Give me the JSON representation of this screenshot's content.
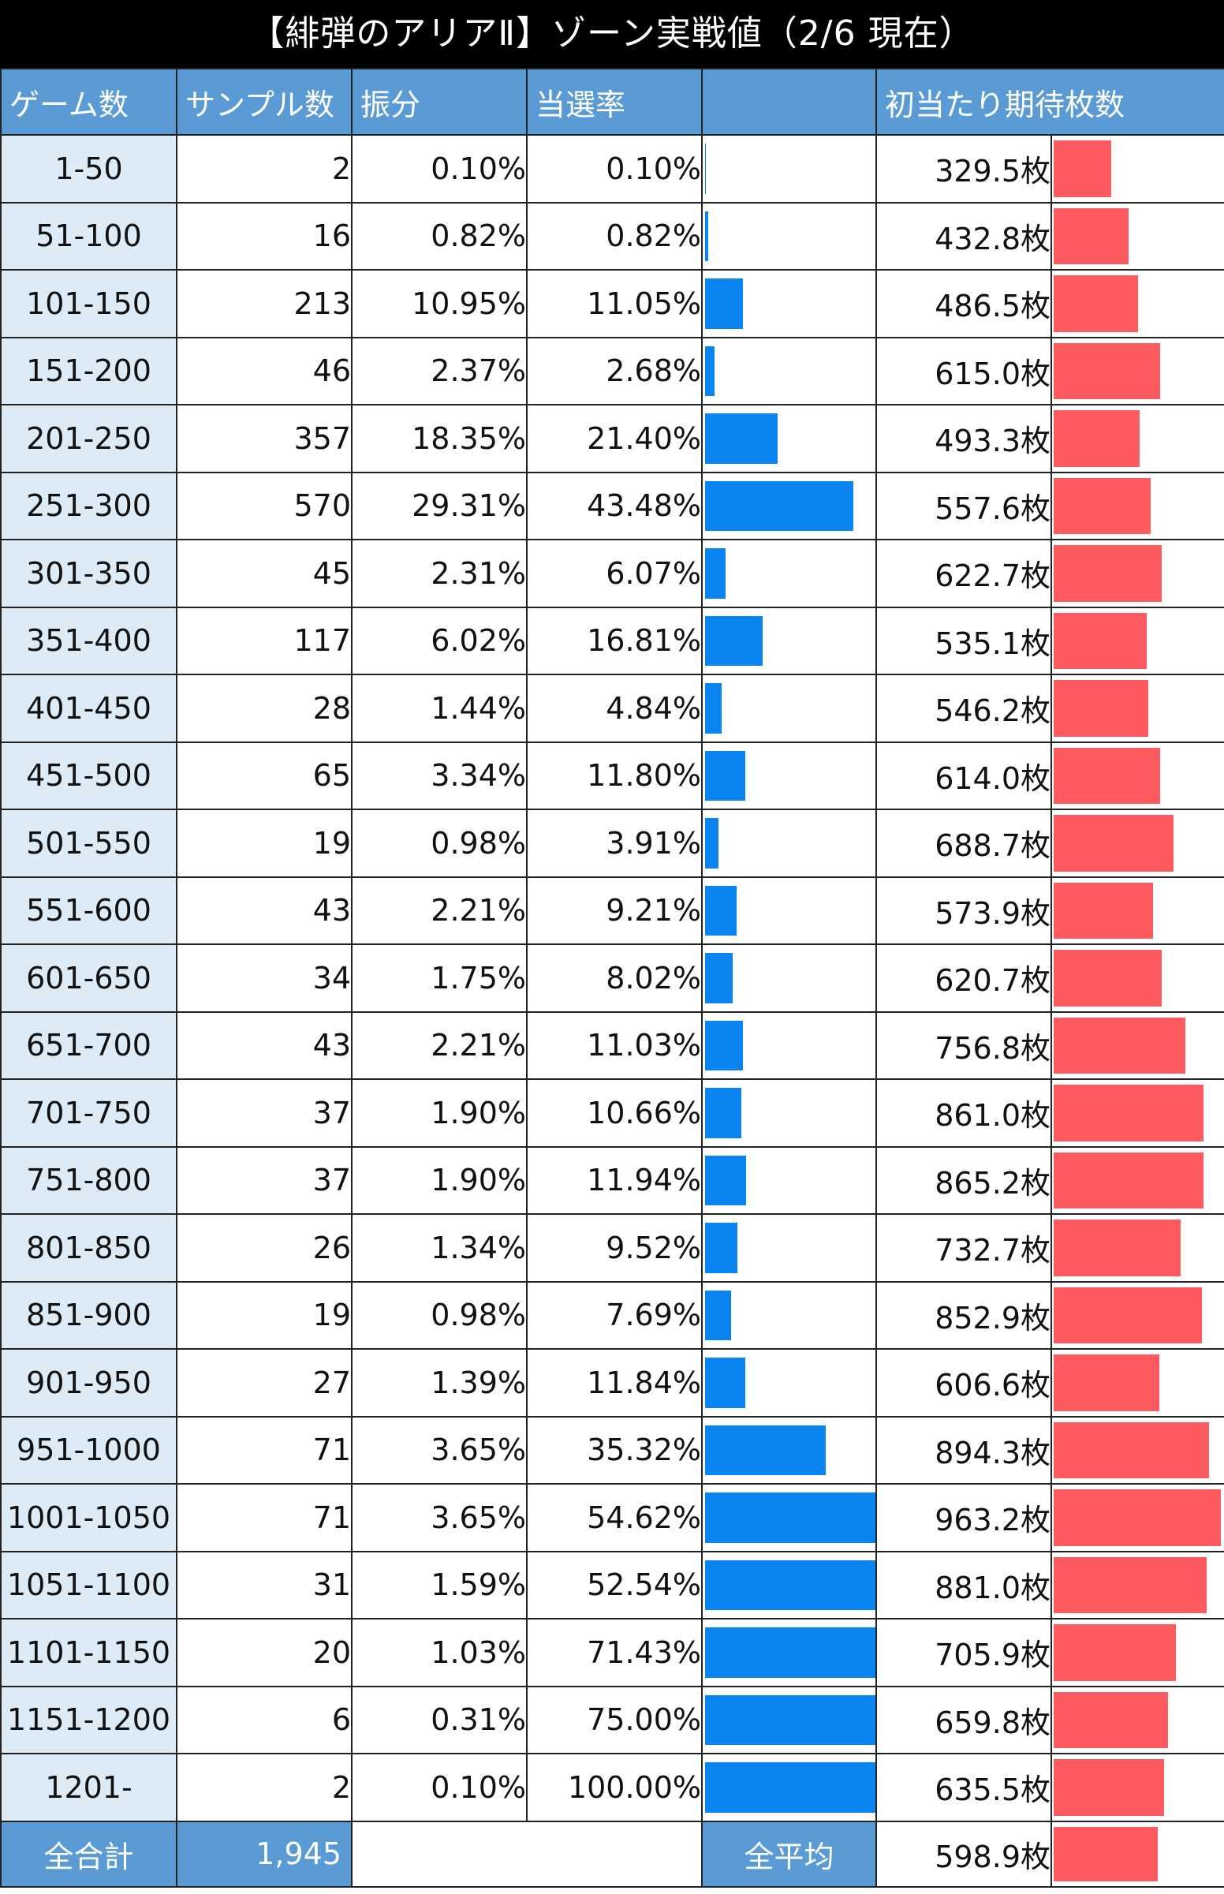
{
  "title": "【緋弾のアリアⅡ】ゾーン実戦値（2/6 現在）",
  "headers": {
    "game": "ゲーム数",
    "sample": "サンプル数",
    "dist": "振分",
    "rate": "当選率",
    "rate_bar": "",
    "expected": "初当たり期待枚数"
  },
  "rows": [
    {
      "game": "1-50",
      "sample": "2",
      "dist": "0.10%",
      "rate": "0.10%",
      "expected": "329.5枚"
    },
    {
      "game": "51-100",
      "sample": "16",
      "dist": "0.82%",
      "rate": "0.82%",
      "expected": "432.8枚"
    },
    {
      "game": "101-150",
      "sample": "213",
      "dist": "10.95%",
      "rate": "11.05%",
      "expected": "486.5枚"
    },
    {
      "game": "151-200",
      "sample": "46",
      "dist": "2.37%",
      "rate": "2.68%",
      "expected": "615.0枚"
    },
    {
      "game": "201-250",
      "sample": "357",
      "dist": "18.35%",
      "rate": "21.40%",
      "expected": "493.3枚"
    },
    {
      "game": "251-300",
      "sample": "570",
      "dist": "29.31%",
      "rate": "43.48%",
      "expected": "557.6枚"
    },
    {
      "game": "301-350",
      "sample": "45",
      "dist": "2.31%",
      "rate": "6.07%",
      "expected": "622.7枚"
    },
    {
      "game": "351-400",
      "sample": "117",
      "dist": "6.02%",
      "rate": "16.81%",
      "expected": "535.1枚"
    },
    {
      "game": "401-450",
      "sample": "28",
      "dist": "1.44%",
      "rate": "4.84%",
      "expected": "546.2枚"
    },
    {
      "game": "451-500",
      "sample": "65",
      "dist": "3.34%",
      "rate": "11.80%",
      "expected": "614.0枚"
    },
    {
      "game": "501-550",
      "sample": "19",
      "dist": "0.98%",
      "rate": "3.91%",
      "expected": "688.7枚"
    },
    {
      "game": "551-600",
      "sample": "43",
      "dist": "2.21%",
      "rate": "9.21%",
      "expected": "573.9枚"
    },
    {
      "game": "601-650",
      "sample": "34",
      "dist": "1.75%",
      "rate": "8.02%",
      "expected": "620.7枚"
    },
    {
      "game": "651-700",
      "sample": "43",
      "dist": "2.21%",
      "rate": "11.03%",
      "expected": "756.8枚"
    },
    {
      "game": "701-750",
      "sample": "37",
      "dist": "1.90%",
      "rate": "10.66%",
      "expected": "861.0枚"
    },
    {
      "game": "751-800",
      "sample": "37",
      "dist": "1.90%",
      "rate": "11.94%",
      "expected": "865.2枚"
    },
    {
      "game": "801-850",
      "sample": "26",
      "dist": "1.34%",
      "rate": "9.52%",
      "expected": "732.7枚"
    },
    {
      "game": "851-900",
      "sample": "19",
      "dist": "0.98%",
      "rate": "7.69%",
      "expected": "852.9枚"
    },
    {
      "game": "901-950",
      "sample": "27",
      "dist": "1.39%",
      "rate": "11.84%",
      "expected": "606.6枚"
    },
    {
      "game": "951-1000",
      "sample": "71",
      "dist": "3.65%",
      "rate": "35.32%",
      "expected": "894.3枚"
    },
    {
      "game": "1001-1050",
      "sample": "71",
      "dist": "3.65%",
      "rate": "54.62%",
      "expected": "963.2枚"
    },
    {
      "game": "1051-1100",
      "sample": "31",
      "dist": "1.59%",
      "rate": "52.54%",
      "expected": "881.0枚"
    },
    {
      "game": "1101-1150",
      "sample": "20",
      "dist": "1.03%",
      "rate": "71.43%",
      "expected": "705.9枚"
    },
    {
      "game": "1151-1200",
      "sample": "6",
      "dist": "0.31%",
      "rate": "75.00%",
      "expected": "659.8枚"
    },
    {
      "game": "1201-",
      "sample": "2",
      "dist": "0.10%",
      "rate": "100.00%",
      "expected": "635.5枚"
    }
  ],
  "total": {
    "label": "全合計",
    "sample": "1,945",
    "avg_label": "全平均",
    "expected": "598.9枚"
  },
  "colors": {
    "header_bg": "#5b9bd5",
    "game_bg": "#ddebf7",
    "rate_bar": "#0a84f0",
    "expected_bar": "#ff5a5f",
    "title_bg": "#000000"
  },
  "chart_data": {
    "type": "table",
    "title": "【緋弾のアリアⅡ】ゾーン実戦値（2/6 現在）",
    "categories": [
      "1-50",
      "51-100",
      "101-150",
      "151-200",
      "201-250",
      "251-300",
      "301-350",
      "351-400",
      "401-450",
      "451-500",
      "501-550",
      "551-600",
      "601-650",
      "651-700",
      "701-750",
      "751-800",
      "801-850",
      "851-900",
      "901-950",
      "951-1000",
      "1001-1050",
      "1051-1100",
      "1101-1150",
      "1151-1200",
      "1201-"
    ],
    "series": [
      {
        "name": "サンプル数",
        "values": [
          2,
          16,
          213,
          46,
          357,
          570,
          45,
          117,
          28,
          65,
          19,
          43,
          34,
          43,
          37,
          37,
          26,
          19,
          27,
          71,
          71,
          31,
          20,
          6,
          2
        ]
      },
      {
        "name": "振分",
        "values": [
          0.1,
          0.82,
          10.95,
          2.37,
          18.35,
          29.31,
          2.31,
          6.02,
          1.44,
          3.34,
          0.98,
          2.21,
          1.75,
          2.21,
          1.9,
          1.9,
          1.34,
          0.98,
          1.39,
          3.65,
          3.65,
          1.59,
          1.03,
          0.31,
          0.1
        ]
      },
      {
        "name": "当選率",
        "values": [
          0.1,
          0.82,
          11.05,
          2.68,
          21.4,
          43.48,
          6.07,
          16.81,
          4.84,
          11.8,
          3.91,
          9.21,
          8.02,
          11.03,
          10.66,
          11.94,
          9.52,
          7.69,
          11.84,
          35.32,
          54.62,
          52.54,
          71.43,
          75.0,
          100.0
        ]
      },
      {
        "name": "初当たり期待枚数",
        "values": [
          329.5,
          432.8,
          486.5,
          615.0,
          493.3,
          557.6,
          622.7,
          535.1,
          546.2,
          614.0,
          688.7,
          573.9,
          620.7,
          756.8,
          861.0,
          865.2,
          732.7,
          852.9,
          606.6,
          894.3,
          963.2,
          881.0,
          705.9,
          659.8,
          635.5
        ]
      }
    ],
    "total_sample": 1945,
    "average_expected": 598.9,
    "rate_bar_max": 50,
    "expected_bar_max": 963.2
  }
}
